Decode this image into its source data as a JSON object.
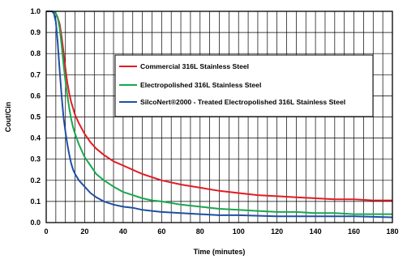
{
  "chart_data": {
    "type": "line",
    "title": "",
    "xlabel": "Time (minutes)",
    "ylabel": "Cout/Cin",
    "xlim": [
      0,
      180
    ],
    "ylim": [
      0,
      1.0
    ],
    "x_ticks": [
      0,
      20,
      40,
      60,
      80,
      100,
      120,
      140,
      160,
      180
    ],
    "y_ticks": [
      "0.0",
      "0.1",
      "0.2",
      "0.3",
      "0.4",
      "0.5",
      "0.6",
      "0.7",
      "0.8",
      "0.9",
      "1.0"
    ],
    "grid": true,
    "legend_position": "upper-right, inside plot",
    "series": [
      {
        "name": "Commercial 316L Stainless Steel",
        "color": "#e31b23",
        "x": [
          0,
          3,
          5,
          6,
          7,
          8,
          9,
          10,
          11,
          12,
          13,
          14,
          15,
          17,
          20,
          23,
          26,
          30,
          35,
          40,
          45,
          50,
          55,
          60,
          70,
          80,
          90,
          100,
          110,
          120,
          130,
          140,
          150,
          160,
          170,
          180
        ],
        "y": [
          1.0,
          1.0,
          0.99,
          0.97,
          0.94,
          0.88,
          0.81,
          0.73,
          0.66,
          0.61,
          0.57,
          0.54,
          0.51,
          0.47,
          0.42,
          0.38,
          0.35,
          0.32,
          0.29,
          0.27,
          0.25,
          0.23,
          0.215,
          0.2,
          0.18,
          0.165,
          0.15,
          0.14,
          0.13,
          0.125,
          0.12,
          0.115,
          0.11,
          0.11,
          0.105,
          0.105
        ]
      },
      {
        "name": "Electropolished 316L Stainless Steel",
        "color": "#1aa650",
        "x": [
          0,
          3,
          5,
          6,
          7,
          8,
          9,
          10,
          11,
          12,
          13,
          14,
          15,
          17,
          20,
          23,
          26,
          30,
          35,
          40,
          45,
          50,
          55,
          60,
          70,
          80,
          90,
          100,
          110,
          120,
          130,
          140,
          150,
          160,
          170,
          180
        ],
        "y": [
          1.0,
          1.0,
          0.99,
          0.97,
          0.92,
          0.84,
          0.75,
          0.67,
          0.6,
          0.54,
          0.49,
          0.45,
          0.42,
          0.37,
          0.31,
          0.27,
          0.23,
          0.2,
          0.17,
          0.145,
          0.13,
          0.115,
          0.105,
          0.1,
          0.085,
          0.075,
          0.065,
          0.06,
          0.055,
          0.05,
          0.05,
          0.045,
          0.045,
          0.04,
          0.04,
          0.04
        ]
      },
      {
        "name": "SilcoNert®2000 - Treated Electropolished 316L Stainless Steel",
        "color": "#1f4fa3",
        "x": [
          0,
          3,
          4,
          5,
          6,
          7,
          8,
          9,
          10,
          11,
          12,
          13,
          14,
          15,
          17,
          20,
          23,
          26,
          30,
          35,
          40,
          45,
          50,
          55,
          60,
          70,
          80,
          90,
          100,
          120,
          140,
          160,
          180
        ],
        "y": [
          1.0,
          1.0,
          0.99,
          0.95,
          0.85,
          0.72,
          0.6,
          0.5,
          0.43,
          0.37,
          0.32,
          0.28,
          0.25,
          0.23,
          0.2,
          0.17,
          0.14,
          0.12,
          0.1,
          0.085,
          0.075,
          0.07,
          0.06,
          0.055,
          0.05,
          0.045,
          0.04,
          0.035,
          0.035,
          0.03,
          0.03,
          0.03,
          0.025
        ]
      }
    ]
  }
}
